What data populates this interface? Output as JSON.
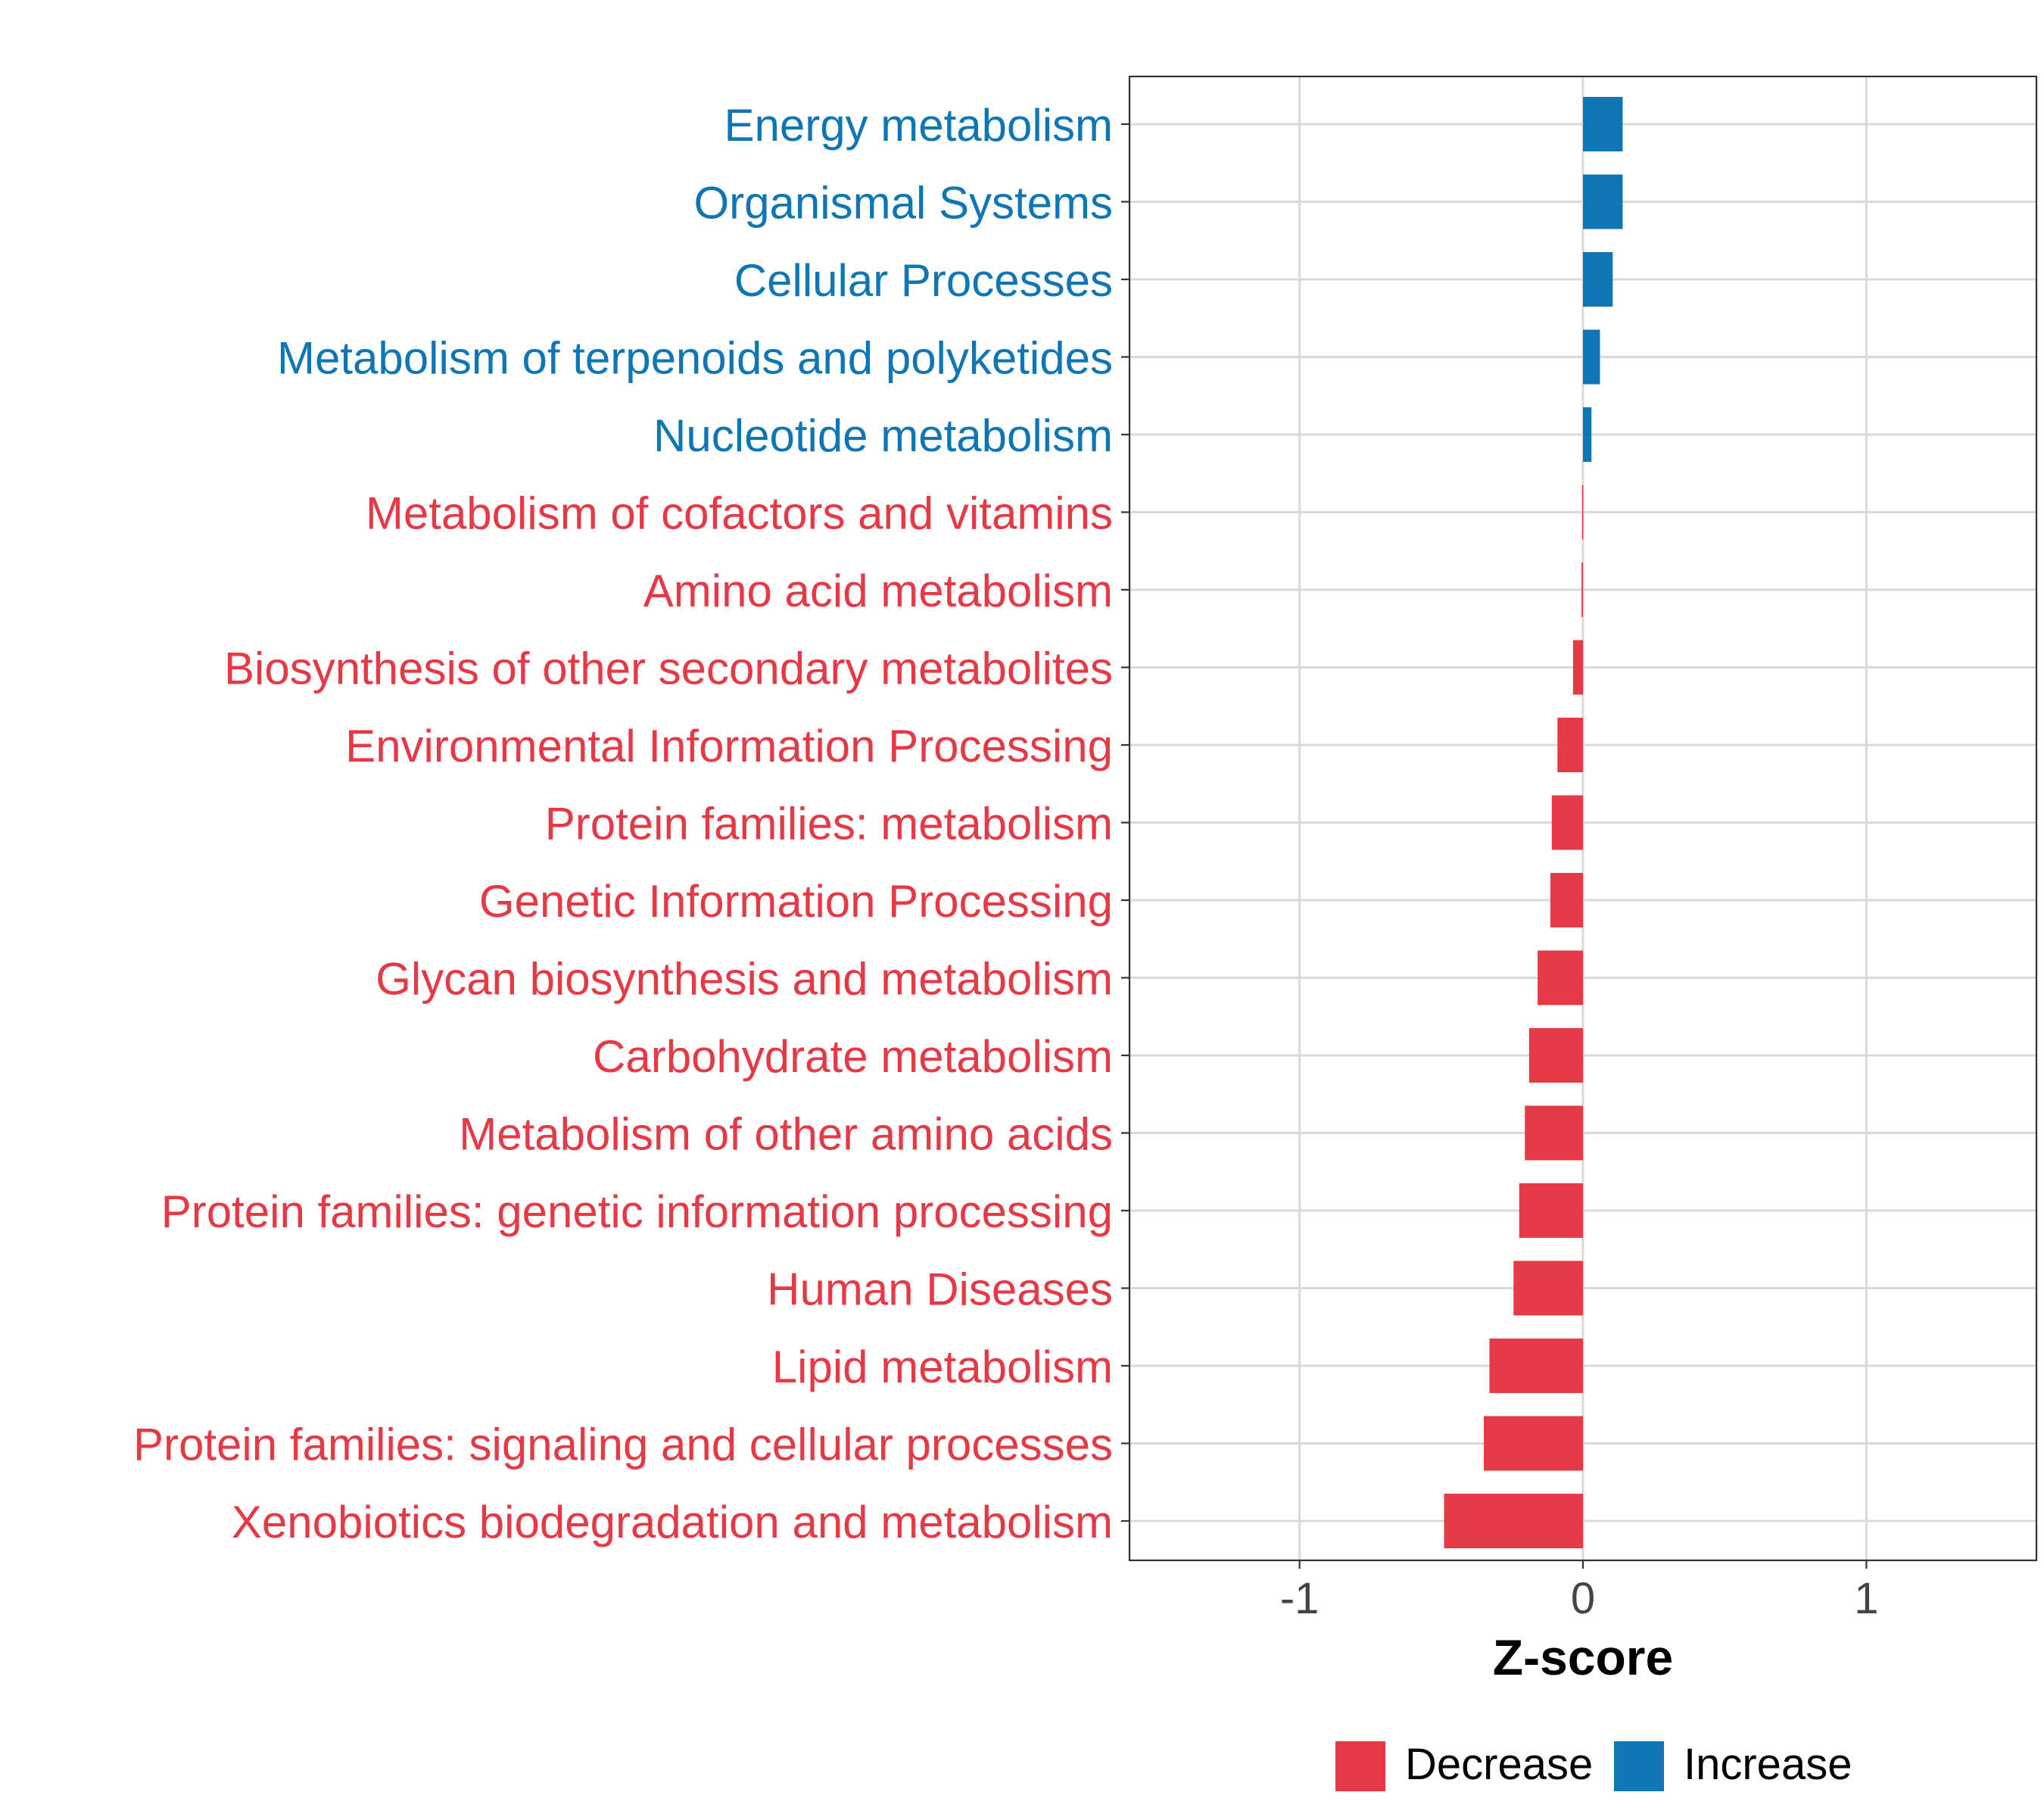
{
  "colors": {
    "decrease": "#E63946",
    "increase": "#0E76B5",
    "grid": "#D9D9D9",
    "axis_text": "#444444",
    "frame": "#333333"
  },
  "chart_data": {
    "type": "bar",
    "orientation": "horizontal",
    "title": "",
    "xlabel": "Z-score",
    "ylabel": "",
    "xlim": [
      -1.6,
      1.6
    ],
    "xticks": [
      -1,
      0,
      1
    ],
    "xtick_labels": [
      "-1",
      "0",
      "1"
    ],
    "grid": true,
    "legend_position": "bottom",
    "legend": [
      {
        "name": "Decrease",
        "color_key": "decrease"
      },
      {
        "name": "Increase",
        "color_key": "increase"
      }
    ],
    "categories": [
      "Energy metabolism",
      "Organismal Systems",
      "Cellular Processes",
      "Metabolism of terpenoids and polyketides",
      "Nucleotide metabolism",
      "Metabolism of cofactors and vitamins",
      "Amino acid metabolism",
      "Biosynthesis of other secondary metabolites",
      "Environmental Information Processing",
      "Protein families: metabolism",
      "Genetic Information Processing",
      "Glycan biosynthesis and metabolism",
      "Carbohydrate metabolism",
      "Metabolism of other amino acids",
      "Protein families: genetic information processing",
      "Human Diseases",
      "Lipid metabolism",
      "Protein families: signaling and cellular processes",
      "Xenobiotics biodegradation and metabolism"
    ],
    "values": [
      0.14,
      0.14,
      0.105,
      0.06,
      0.03,
      -0.003,
      -0.005,
      -0.035,
      -0.09,
      -0.11,
      -0.115,
      -0.16,
      -0.19,
      -0.205,
      -0.225,
      -0.245,
      -0.33,
      -0.35,
      -0.49
    ],
    "groups": [
      "Increase",
      "Increase",
      "Increase",
      "Increase",
      "Increase",
      "Decrease",
      "Decrease",
      "Decrease",
      "Decrease",
      "Decrease",
      "Decrease",
      "Decrease",
      "Decrease",
      "Decrease",
      "Decrease",
      "Decrease",
      "Decrease",
      "Decrease",
      "Decrease"
    ]
  }
}
